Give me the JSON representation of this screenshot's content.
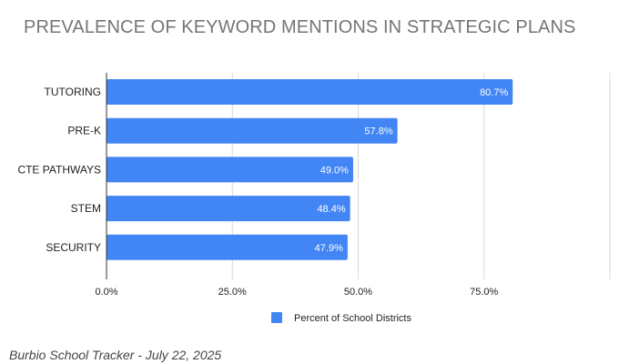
{
  "chart_data": {
    "type": "bar",
    "orientation": "horizontal",
    "title": "PREVALENCE OF KEYWORD MENTIONS IN STRATEGIC PLANS",
    "categories": [
      "TUTORING",
      "PRE-K",
      "CTE PATHWAYS",
      "STEM",
      "SECURITY"
    ],
    "series": [
      {
        "name": "Percent of School Districts",
        "values": [
          80.7,
          57.8,
          49.0,
          48.4,
          47.9
        ],
        "labels": [
          "80.7%",
          "57.8%",
          "49.0%",
          "48.4%",
          "47.9%"
        ],
        "color": "#4285f4"
      }
    ],
    "xlim": [
      0,
      100
    ],
    "xticks": [
      0,
      25,
      50,
      75
    ],
    "xtick_labels": [
      "0.0%",
      "25.0%",
      "50.0%",
      "75.0%"
    ],
    "grid": true,
    "legend": "bottom"
  },
  "footnote": "Burbio School Tracker - July 22, 2025"
}
